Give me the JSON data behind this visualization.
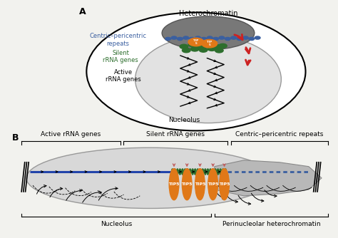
{
  "panel_A_label": "A",
  "panel_B_label": "B",
  "heterochromatin_label": "Heterochromatin",
  "centric_label": "Centric–pericentric\nrepeats",
  "silent_label": "Silent\nrRNA genes",
  "active_label": "Active\nrRNA genes",
  "nucleolus_label": "Nucleolus",
  "active_top": "Active rRNA genes",
  "silent_top": "Silent rRNA genes",
  "centric_top": "Centric–pericentric repeats",
  "nucleolus_bottom": "Nucleolus",
  "perinucleolar_bottom": "Perinucleolar heterochromatin",
  "tip5_label": "TIP5",
  "bg_color": "#f2f2ee",
  "cell_facecolor": "white",
  "nucleolus_facecolor": "#e0e0e0",
  "hetero_blob_color": "#808080",
  "blue_dot_color": "#3a5fa0",
  "green_dot_color": "#2d6e2d",
  "tip5_color": "#e07818",
  "blue_line_color": "#2244aa",
  "red_arrow_color": "#cc2222",
  "black": "#1a1a1a",
  "gray_taper": "#b0b0b0",
  "gray_taper2": "#c8c8c8"
}
